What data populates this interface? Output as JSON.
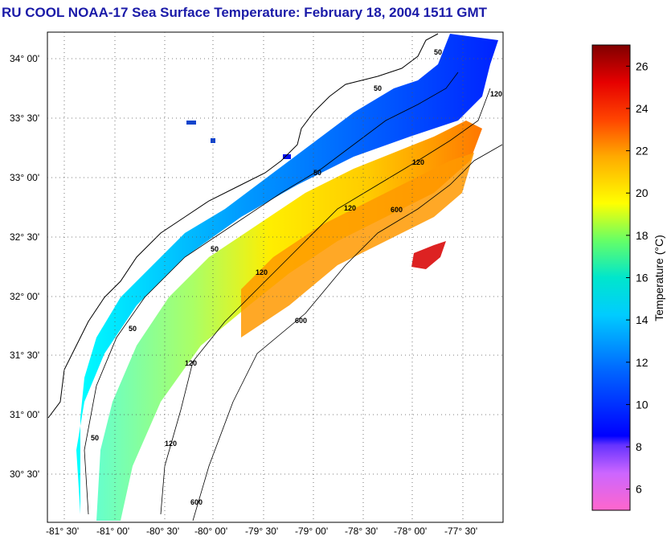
{
  "title": "RU COOL  NOAA-17  Sea Surface Temperature:  February 18, 2004 1511 GMT",
  "map": {
    "lat_labels": [
      "34° 00'",
      "33° 30'",
      "33° 00'",
      "32° 30'",
      "32° 00'",
      "31° 30'",
      "31° 00'",
      "30° 30'"
    ],
    "lon_labels": [
      "-81° 30'",
      "-81° 00'",
      "-80° 30'",
      "-80° 00'",
      "-79° 30'",
      "-79° 00'",
      "-78° 30'",
      "-78° 00'",
      "-77° 30'"
    ],
    "contour_labels": [
      "50",
      "50",
      "50",
      "50",
      "50",
      "50",
      "120",
      "120",
      "120",
      "120",
      "120",
      "120",
      "600",
      "600",
      "600"
    ]
  },
  "colorbar": {
    "label": "Temperature (°C)",
    "ticks": [
      "26",
      "24",
      "22",
      "20",
      "18",
      "16",
      "14",
      "12",
      "10",
      "8",
      "6"
    ],
    "min": 5,
    "max": 27
  },
  "colors": {
    "title": "#1a1aa8",
    "cold": "#0000ff",
    "warm": "#ff6600"
  }
}
